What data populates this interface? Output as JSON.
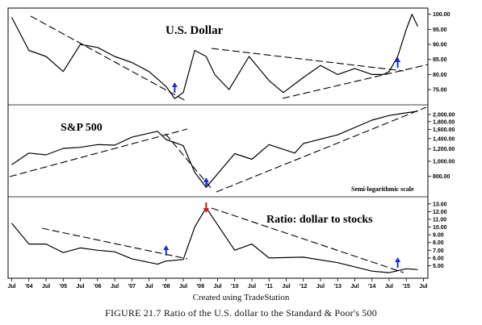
{
  "caption": "FIGURE 21.7 Ratio of the U.S. dollar to the Standard & Poor's 500",
  "credit": "Created using TradeStation",
  "chart_data": [
    {
      "type": "line",
      "title": "U.S. Dollar",
      "x": [
        "Jul 2003",
        "Jan 2004",
        "Jul 2004",
        "Jan 2005",
        "Jul 2005",
        "Jan 2006",
        "Jul 2006",
        "Jan 2007",
        "Jul 2007",
        "Jan 2008",
        "Apr 2008",
        "Jul 2008",
        "Nov 2008",
        "Mar 2009",
        "Jun 2009",
        "Nov 2009",
        "Jun 2010",
        "Jan 2011",
        "Jun 2011",
        "Jan 2012",
        "Jul 2012",
        "Jan 2013",
        "Jul 2013",
        "Jan 2014",
        "May 2014",
        "Jul 2014",
        "Oct 2014",
        "Jan 2015",
        "Mar 2015",
        "May 2015"
      ],
      "values": [
        99,
        88,
        86,
        81,
        90,
        89,
        86,
        84,
        81,
        76,
        72,
        74,
        88,
        86,
        80,
        75,
        86,
        78,
        74,
        79,
        83,
        80,
        82,
        80,
        80,
        81,
        86,
        95,
        100,
        96
      ],
      "ylim": [
        71,
        101
      ],
      "yticks": [
        "100.00",
        "95.00",
        "90.00",
        "85.00",
        "80.00",
        "75.00"
      ],
      "trendlines": "dashed",
      "signals": "up arrows at Apr 2008, Oct 2014"
    },
    {
      "type": "line",
      "title": "S&P 500",
      "x": [
        "Jul 2003",
        "Jan 2004",
        "Jul 2004",
        "Jan 2005",
        "Jul 2005",
        "Jan 2006",
        "Jul 2006",
        "Jan 2007",
        "Oct 2007",
        "Jan 2008",
        "Jul 2008",
        "Nov 2008",
        "Mar 2009",
        "Jan 2010",
        "Jul 2010",
        "Jan 2011",
        "Oct 2011",
        "Jan 2012",
        "Jan 2013",
        "Jan 2014",
        "Jul 2014",
        "Jan 2015",
        "May 2015"
      ],
      "values": [
        950,
        1130,
        1100,
        1210,
        1230,
        1280,
        1270,
        1430,
        1560,
        1380,
        1260,
        850,
        680,
        1120,
        1030,
        1280,
        1130,
        1300,
        1480,
        1840,
        1970,
        2050,
        2100
      ],
      "scale": "semi-logarithmic",
      "ylim": [
        620,
        2200
      ],
      "yticks": [
        "2,000.00",
        "1,800.00",
        "1,600.00",
        "1,400.00",
        "1,200.00",
        "1,000.00",
        "800.00"
      ],
      "annotation": "Semi-logarithmic scale",
      "trendlines": "dashed",
      "signals": "up arrow at Mar 2009"
    },
    {
      "type": "line",
      "title": "Ratio: dollar to stocks",
      "x": [
        "Jul 2003",
        "Jan 2004",
        "Jul 2004",
        "Jan 2005",
        "Jul 2005",
        "Jan 2006",
        "Jul 2006",
        "Jan 2007",
        "Oct 2007",
        "Jan 2008",
        "Jul 2008",
        "Nov 2008",
        "Mar 2009",
        "Jan 2010",
        "Jul 2010",
        "Jan 2011",
        "Jan 2012",
        "Jan 2013",
        "Jan 2014",
        "Jul 2014",
        "Jan 2015",
        "May 2015"
      ],
      "values": [
        10.5,
        7.8,
        7.8,
        6.7,
        7.3,
        7.0,
        6.8,
        5.9,
        5.2,
        5.6,
        5.8,
        10.0,
        12.5,
        7.0,
        7.8,
        6.0,
        6.1,
        5.4,
        4.3,
        4.1,
        4.6,
        4.5
      ],
      "ylim": [
        3.8,
        13.5
      ],
      "yticks": [
        "13.00",
        "12.00",
        "11.00",
        "10.00",
        "9.00",
        "8.00",
        "7.00",
        "6.00",
        "5.00"
      ],
      "trendlines": "dashed",
      "signals": "up arrows at Jan 2008, Oct 2014; down arrow at Mar 2009"
    }
  ],
  "x_axis": {
    "ticks": [
      "Jul",
      "'04",
      "Jul",
      "'05",
      "Jul",
      "'06",
      "Jul",
      "'07",
      "Jul",
      "'08",
      "Jul",
      "'09",
      "Jul",
      "'10",
      "Jul",
      "'11",
      "Jul",
      "'12",
      "Jul",
      "'13",
      "Jul",
      "'14",
      "Jul",
      "'15",
      "Jul"
    ]
  }
}
